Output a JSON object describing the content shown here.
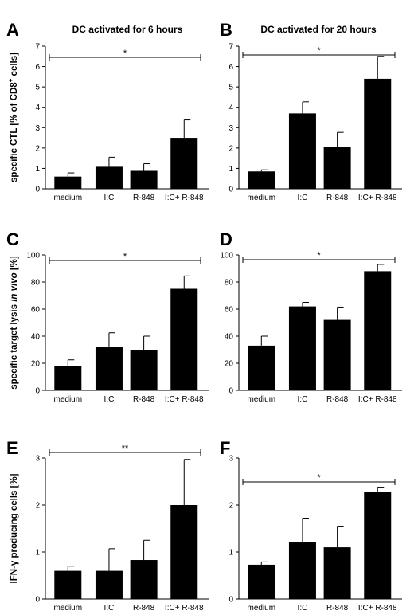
{
  "figure": {
    "column_titles": [
      "DC activated for 6 hours",
      "DC activated for 20 hours"
    ]
  },
  "chart_data": [
    {
      "panel": "A",
      "type": "bar",
      "categories": [
        "medium",
        "I:C",
        "R-848",
        "I:C+ R-848"
      ],
      "values": [
        0.6,
        1.08,
        0.88,
        2.5
      ],
      "errors": [
        0.18,
        0.47,
        0.35,
        0.88
      ],
      "ylabel": "specific CTL [% of CD8+ cells]",
      "ylim": [
        0,
        7
      ],
      "yticks": [
        0,
        1,
        2,
        3,
        4,
        5,
        6,
        7
      ],
      "significance": "*",
      "bar_color": "#000000"
    },
    {
      "panel": "B",
      "type": "bar",
      "categories": [
        "medium",
        "I:C",
        "R-848",
        "I:C+ R-848"
      ],
      "values": [
        0.85,
        3.7,
        2.05,
        5.4
      ],
      "errors": [
        0.08,
        0.57,
        0.72,
        1.1
      ],
      "ylabel": "",
      "ylim": [
        0,
        7
      ],
      "yticks": [
        0,
        1,
        2,
        3,
        4,
        5,
        6,
        7
      ],
      "significance": "*",
      "bar_color": "#000000"
    },
    {
      "panel": "C",
      "type": "bar",
      "categories": [
        "medium",
        "I:C",
        "R-848",
        "I:C+ R-848"
      ],
      "values": [
        18,
        32,
        30,
        75
      ],
      "errors": [
        4.5,
        10.5,
        10,
        9.5
      ],
      "ylabel": "specific target lysis in vivo [%]",
      "ylim": [
        0,
        100
      ],
      "yticks": [
        0,
        20,
        40,
        60,
        80,
        100
      ],
      "significance": "*",
      "bar_color": "#000000"
    },
    {
      "panel": "D",
      "type": "bar",
      "categories": [
        "medium",
        "I:C",
        "R-848",
        "I:C+ R-848"
      ],
      "values": [
        33,
        62,
        52,
        88
      ],
      "errors": [
        7,
        3,
        9.5,
        5
      ],
      "ylabel": "",
      "ylim": [
        0,
        100
      ],
      "yticks": [
        0,
        20,
        40,
        60,
        80,
        100
      ],
      "significance": "*",
      "bar_color": "#000000"
    },
    {
      "panel": "E",
      "type": "bar",
      "categories": [
        "medium",
        "I:C",
        "R-848",
        "I:C+ R-848"
      ],
      "values": [
        0.6,
        0.6,
        0.83,
        2.0
      ],
      "errors": [
        0.1,
        0.47,
        0.42,
        0.97
      ],
      "ylabel": "IFN-γ producing cells [%]",
      "ylim": [
        0,
        3
      ],
      "yticks": [
        0,
        1,
        2,
        3
      ],
      "significance": "**",
      "bar_color": "#000000"
    },
    {
      "panel": "F",
      "type": "bar",
      "categories": [
        "medium",
        "I:C",
        "R-848",
        "I:C+ R-848"
      ],
      "values": [
        0.73,
        1.22,
        1.1,
        2.28
      ],
      "errors": [
        0.06,
        0.5,
        0.45,
        0.1
      ],
      "ylabel": "",
      "ylim": [
        0,
        3
      ],
      "yticks": [
        0,
        1,
        2,
        3
      ],
      "significance": "*",
      "bar_color": "#000000"
    }
  ]
}
